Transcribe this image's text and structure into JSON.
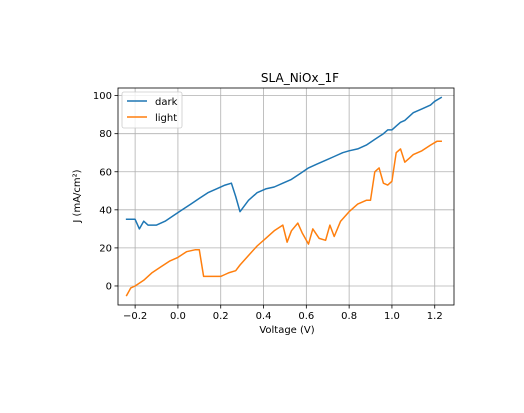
{
  "chart_data": {
    "type": "line",
    "title": "SLA_NiOx_1F",
    "xlabel": "Voltage (V)",
    "ylabel": "J (mA/cm²)",
    "xlim": [
      -0.28,
      1.29
    ],
    "ylim": [
      -10,
      104
    ],
    "grid": true,
    "legend_position": "upper-left",
    "x_ticks": [
      -0.2,
      0.0,
      0.2,
      0.4,
      0.6,
      0.8,
      1.0,
      1.2
    ],
    "x_tick_labels": [
      "−0.2",
      "0.0",
      "0.2",
      "0.4",
      "0.6",
      "0.8",
      "1.0",
      "1.2"
    ],
    "y_ticks": [
      0,
      20,
      40,
      60,
      80,
      100
    ],
    "y_tick_labels": [
      "0",
      "20",
      "40",
      "60",
      "80",
      "100"
    ],
    "series": [
      {
        "name": "dark",
        "color": "#1f77b4",
        "x": [
          -0.24,
          -0.2,
          -0.18,
          -0.16,
          -0.14,
          -0.1,
          -0.06,
          -0.02,
          0.02,
          0.06,
          0.1,
          0.14,
          0.18,
          0.22,
          0.25,
          0.27,
          0.29,
          0.33,
          0.37,
          0.41,
          0.45,
          0.49,
          0.53,
          0.57,
          0.61,
          0.65,
          0.69,
          0.73,
          0.77,
          0.8,
          0.84,
          0.88,
          0.92,
          0.96,
          0.98,
          1.0,
          1.02,
          1.04,
          1.06,
          1.1,
          1.14,
          1.18,
          1.2,
          1.23
        ],
        "y": [
          35,
          35,
          30,
          34,
          32,
          32,
          34,
          37,
          40,
          43,
          46,
          49,
          51,
          53,
          54,
          47,
          39,
          45,
          49,
          51,
          52,
          54,
          56,
          59,
          62,
          64,
          66,
          68,
          70,
          71,
          72,
          74,
          77,
          80,
          82,
          82,
          84,
          86,
          87,
          91,
          93,
          95,
          97,
          99
        ]
      },
      {
        "name": "light",
        "color": "#ff7f0e",
        "x": [
          -0.24,
          -0.22,
          -0.2,
          -0.16,
          -0.12,
          -0.08,
          -0.04,
          0.0,
          0.04,
          0.08,
          0.1,
          0.12,
          0.16,
          0.2,
          0.22,
          0.24,
          0.27,
          0.29,
          0.33,
          0.37,
          0.41,
          0.45,
          0.49,
          0.51,
          0.53,
          0.56,
          0.58,
          0.61,
          0.63,
          0.66,
          0.69,
          0.71,
          0.73,
          0.76,
          0.8,
          0.84,
          0.88,
          0.9,
          0.92,
          0.94,
          0.96,
          0.98,
          1.0,
          1.02,
          1.04,
          1.06,
          1.08,
          1.1,
          1.14,
          1.18,
          1.21,
          1.23
        ],
        "y": [
          -5,
          -1,
          0,
          3,
          7,
          10,
          13,
          15,
          18,
          19,
          19,
          5,
          5,
          5,
          6,
          7,
          8,
          11,
          16,
          21,
          25,
          29,
          32,
          23,
          29,
          33,
          28,
          22,
          30,
          25,
          24,
          32,
          26,
          34,
          39,
          43,
          45,
          45,
          60,
          62,
          54,
          53,
          55,
          70,
          72,
          65,
          67,
          69,
          71,
          74,
          76,
          76
        ]
      }
    ]
  }
}
